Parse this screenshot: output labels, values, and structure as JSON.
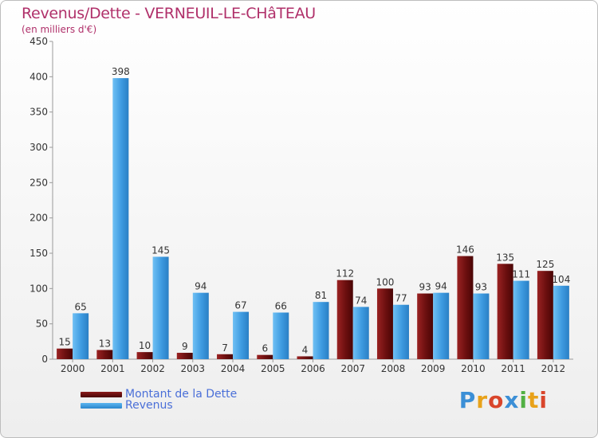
{
  "header": {
    "title": "Revenus/Dette - VERNEUIL-LE-CHâTEAU",
    "subtitle": "(en milliers d'€)"
  },
  "legend": {
    "debt_label": "Montant de la Dette",
    "revenue_label": "Revenus"
  },
  "logo": {
    "text": "Proxiti"
  },
  "colors": {
    "debt": "#6b0f0f",
    "revenue": "#3d9ae0",
    "title": "#b0306a",
    "legend_text": "#4a6fd8"
  },
  "chart_data": {
    "type": "bar",
    "categories": [
      "2000",
      "2001",
      "2002",
      "2003",
      "2004",
      "2005",
      "2006",
      "2007",
      "2008",
      "2009",
      "2010",
      "2011",
      "2012"
    ],
    "series": [
      {
        "name": "Montant de la Dette",
        "values": [
          15,
          13,
          10,
          9,
          7,
          6,
          4,
          112,
          100,
          93,
          146,
          135,
          125
        ]
      },
      {
        "name": "Revenus",
        "values": [
          65,
          398,
          145,
          94,
          67,
          66,
          81,
          74,
          77,
          94,
          93,
          111,
          104
        ]
      }
    ],
    "ylim": [
      0,
      450
    ],
    "yticks": [
      0,
      50,
      100,
      150,
      200,
      250,
      300,
      350,
      400,
      450
    ],
    "grid": false,
    "legend_position": "bottom-left"
  }
}
